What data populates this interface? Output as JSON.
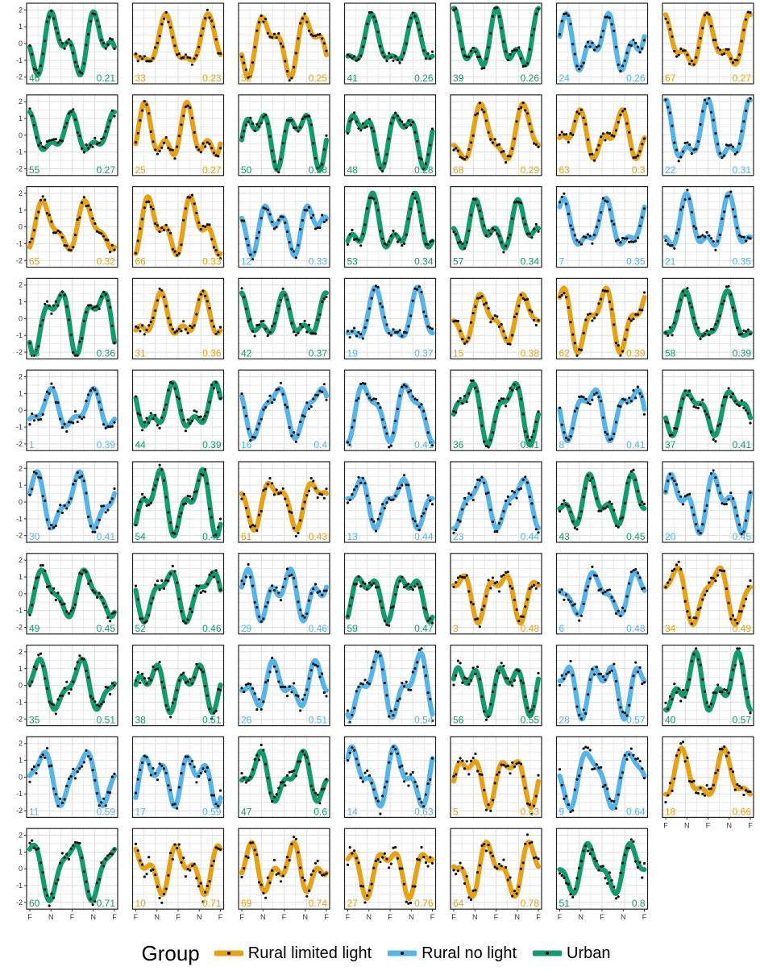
{
  "chart_data": {
    "type": "line",
    "description_free": true,
    "y_ticks": [
      "2",
      "1",
      "0",
      "-1",
      "-2"
    ],
    "ylim": [
      -2.4,
      2.4
    ],
    "x_ticks": [
      "F",
      "N",
      "F",
      "N",
      "F"
    ],
    "grid": true,
    "legend": {
      "title": "Group",
      "position": "bottom",
      "items": [
        {
          "label": "Rural limited light",
          "color": "#E6A117"
        },
        {
          "label": "Rural no light",
          "color": "#56B4E9"
        },
        {
          "label": "Urban",
          "color": "#139B6E"
        }
      ]
    },
    "colors": {
      "RLL": "#E6A117",
      "RNL": "#56B4E9",
      "U": "#139B6E"
    },
    "panels": [
      {
        "id": "46",
        "value": "0.21",
        "group": "U"
      },
      {
        "id": "33",
        "value": "0.23",
        "group": "RLL"
      },
      {
        "id": "32",
        "value": "0.25",
        "group": "RLL"
      },
      {
        "id": "41",
        "value": "0.26",
        "group": "U"
      },
      {
        "id": "39",
        "value": "0.26",
        "group": "U"
      },
      {
        "id": "24",
        "value": "0.26",
        "group": "RNL"
      },
      {
        "id": "67",
        "value": "0.27",
        "group": "RLL"
      },
      {
        "id": "55",
        "value": "0.27",
        "group": "U"
      },
      {
        "id": "25",
        "value": "0.27",
        "group": "RLL"
      },
      {
        "id": "50",
        "value": "0.28",
        "group": "U"
      },
      {
        "id": "48",
        "value": "0.28",
        "group": "U"
      },
      {
        "id": "68",
        "value": "0.29",
        "group": "RLL"
      },
      {
        "id": "63",
        "value": "0.3",
        "group": "RLL"
      },
      {
        "id": "22",
        "value": "0.31",
        "group": "RNL"
      },
      {
        "id": "65",
        "value": "0.32",
        "group": "RLL"
      },
      {
        "id": "66",
        "value": "0.33",
        "group": "RLL"
      },
      {
        "id": "12",
        "value": "0.33",
        "group": "RNL"
      },
      {
        "id": "53",
        "value": "0.34",
        "group": "U"
      },
      {
        "id": "57",
        "value": "0.34",
        "group": "U"
      },
      {
        "id": "7",
        "value": "0.35",
        "group": "RNL"
      },
      {
        "id": "21",
        "value": "0.35",
        "group": "RNL"
      },
      {
        "id": "45",
        "value": "0.36",
        "group": "U"
      },
      {
        "id": "31",
        "value": "0.36",
        "group": "RLL"
      },
      {
        "id": "42",
        "value": "0.37",
        "group": "U"
      },
      {
        "id": "19",
        "value": "0.37",
        "group": "RNL"
      },
      {
        "id": "15",
        "value": "0.38",
        "group": "RLL"
      },
      {
        "id": "62",
        "value": "0.39",
        "group": "RLL"
      },
      {
        "id": "58",
        "value": "0.39",
        "group": "U"
      },
      {
        "id": "1",
        "value": "0.39",
        "group": "RNL"
      },
      {
        "id": "44",
        "value": "0.39",
        "group": "U"
      },
      {
        "id": "16",
        "value": "0.4",
        "group": "RNL"
      },
      {
        "id": "4",
        "value": "0.41",
        "group": "RNL"
      },
      {
        "id": "36",
        "value": "0.41",
        "group": "U"
      },
      {
        "id": "8",
        "value": "0.41",
        "group": "RNL"
      },
      {
        "id": "37",
        "value": "0.41",
        "group": "U"
      },
      {
        "id": "30",
        "value": "0.41",
        "group": "RNL"
      },
      {
        "id": "54",
        "value": "0.42",
        "group": "U"
      },
      {
        "id": "61",
        "value": "0.43",
        "group": "RLL"
      },
      {
        "id": "13",
        "value": "0.44",
        "group": "RNL"
      },
      {
        "id": "23",
        "value": "0.44",
        "group": "RNL"
      },
      {
        "id": "43",
        "value": "0.45",
        "group": "U"
      },
      {
        "id": "20",
        "value": "0.45",
        "group": "RNL"
      },
      {
        "id": "49",
        "value": "0.45",
        "group": "U"
      },
      {
        "id": "52",
        "value": "0.46",
        "group": "U"
      },
      {
        "id": "29",
        "value": "0.46",
        "group": "RNL"
      },
      {
        "id": "59",
        "value": "0.47",
        "group": "U"
      },
      {
        "id": "3",
        "value": "0.48",
        "group": "RLL"
      },
      {
        "id": "6",
        "value": "0.48",
        "group": "RNL"
      },
      {
        "id": "34",
        "value": "0.49",
        "group": "RLL"
      },
      {
        "id": "35",
        "value": "0.51",
        "group": "U"
      },
      {
        "id": "38",
        "value": "0.51",
        "group": "U"
      },
      {
        "id": "26",
        "value": "0.51",
        "group": "RNL"
      },
      {
        "id": "2",
        "value": "0.54",
        "group": "RNL"
      },
      {
        "id": "56",
        "value": "0.55",
        "group": "U"
      },
      {
        "id": "28",
        "value": "0.57",
        "group": "RNL"
      },
      {
        "id": "40",
        "value": "0.57",
        "group": "U"
      },
      {
        "id": "11",
        "value": "0.59",
        "group": "RNL"
      },
      {
        "id": "17",
        "value": "0.59",
        "group": "RNL"
      },
      {
        "id": "47",
        "value": "0.6",
        "group": "U"
      },
      {
        "id": "14",
        "value": "0.63",
        "group": "RNL"
      },
      {
        "id": "5",
        "value": "0.63",
        "group": "RLL"
      },
      {
        "id": "9",
        "value": "0.64",
        "group": "RNL"
      },
      {
        "id": "18",
        "value": "0.66",
        "group": "RLL"
      },
      {
        "id": "60",
        "value": "0.71",
        "group": "U"
      },
      {
        "id": "10",
        "value": "0.71",
        "group": "RLL"
      },
      {
        "id": "69",
        "value": "0.74",
        "group": "RLL"
      },
      {
        "id": "27",
        "value": "0.76",
        "group": "RLL"
      },
      {
        "id": "64",
        "value": "0.78",
        "group": "RLL"
      },
      {
        "id": "51",
        "value": "0.8",
        "group": "U"
      }
    ]
  }
}
